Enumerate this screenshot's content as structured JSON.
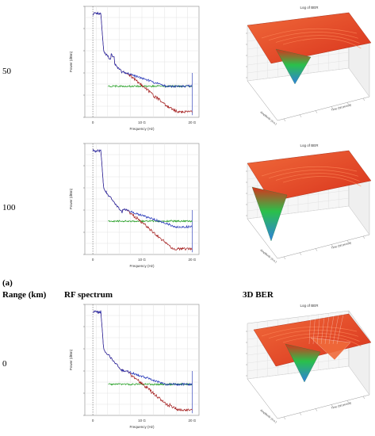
{
  "rows": [
    {
      "range": "50"
    },
    {
      "range": "100"
    },
    {
      "range": "0"
    }
  ],
  "captions": {
    "panel_tag": "(a)",
    "range_header": "Range (km)",
    "rf_header": "RF spectrum",
    "ber_header": "3D BER"
  },
  "spectrum_axes": {
    "xlabel": "Frequency (Hz)",
    "ylabel": "Power (dBm)",
    "ticks_x": [
      "0",
      "10 G",
      "20 G"
    ]
  },
  "ber_axes": {
    "title": "Log of BER",
    "xlabel": "Amplitude (a.u.)",
    "ylabel": "Time (bit period)"
  },
  "colors": {
    "blue": "#1d2fb5",
    "red": "#a01414",
    "green": "#1a9a1a",
    "surface": "#d8321c",
    "surface_light": "#f06a3a",
    "valley": "#2ac04a",
    "valley_deep": "#2f7fe0"
  }
}
